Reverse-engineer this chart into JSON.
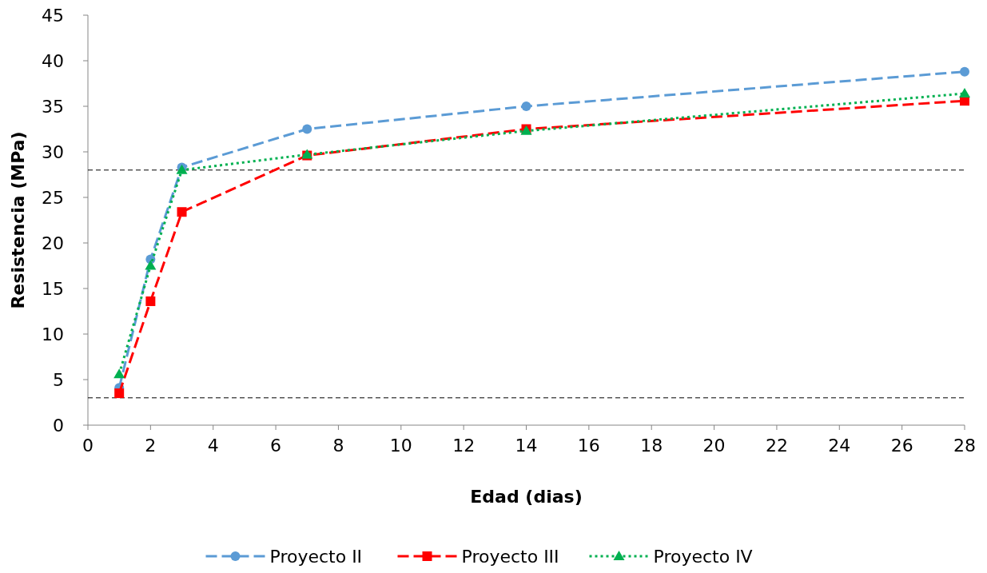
{
  "chart_data": {
    "type": "line",
    "xlabel": "Edad (dias)",
    "ylabel": "Resistencia (MPa)",
    "xlim": [
      0,
      28
    ],
    "xticks": [
      0,
      2,
      4,
      6,
      8,
      10,
      12,
      14,
      16,
      18,
      20,
      22,
      24,
      26,
      28
    ],
    "ylim": [
      0,
      45
    ],
    "yticks": [
      0,
      5,
      10,
      15,
      20,
      25,
      30,
      35,
      40,
      45
    ],
    "x": [
      1,
      2,
      3,
      7,
      14,
      28
    ],
    "series": [
      {
        "name": "Proyecto II",
        "color": "#5b9bd5",
        "values": [
          4.1,
          18.2,
          28.3,
          32.5,
          35.0,
          38.8
        ],
        "marker": "circle",
        "line_style": "dashed"
      },
      {
        "name": "Proyecto III",
        "color": "#ff0000",
        "values": [
          3.5,
          13.6,
          23.4,
          29.6,
          32.5,
          35.6
        ],
        "marker": "square",
        "line_style": "dashed"
      },
      {
        "name": "Proyecto IV",
        "color": "#00b050",
        "values": [
          5.6,
          17.5,
          28.0,
          29.7,
          32.3,
          36.4
        ],
        "marker": "triangle",
        "line_style": "dotted"
      }
    ],
    "ref_lines": [
      {
        "axis": "y",
        "value": 28,
        "color": "#000000",
        "line_style": "dashed"
      },
      {
        "axis": "y",
        "value": 3,
        "color": "#000000",
        "line_style": "dashed"
      }
    ],
    "grid": false,
    "legend": "bottom"
  }
}
